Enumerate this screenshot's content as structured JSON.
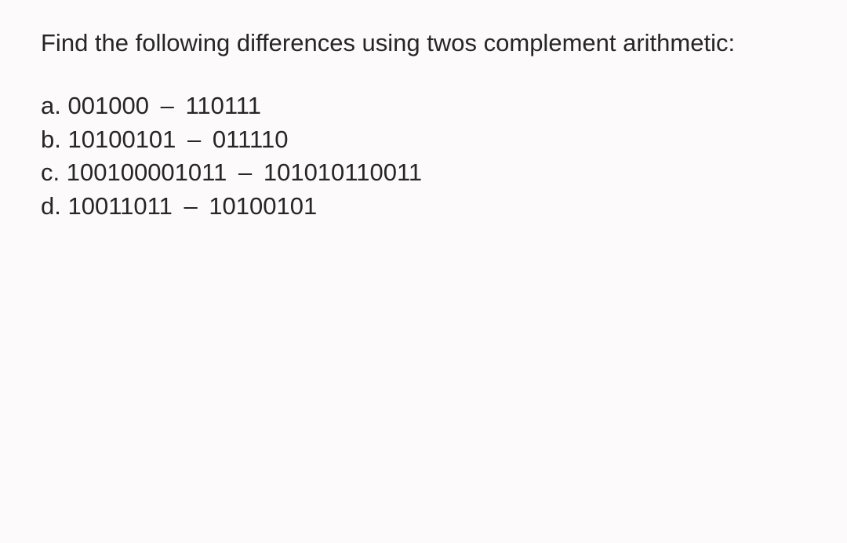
{
  "prompt": "Find the following differences using twos complement arithmetic:",
  "dash": "–",
  "items": [
    {
      "label": "a.",
      "minuend": "001000",
      "subtrahend": "110111"
    },
    {
      "label": "b.",
      "minuend": "10100101",
      "subtrahend": "011110"
    },
    {
      "label": "c.",
      "minuend": "100100001011",
      "subtrahend": "101010110011"
    },
    {
      "label": "d.",
      "minuend": "10011011",
      "subtrahend": "10100101"
    }
  ]
}
